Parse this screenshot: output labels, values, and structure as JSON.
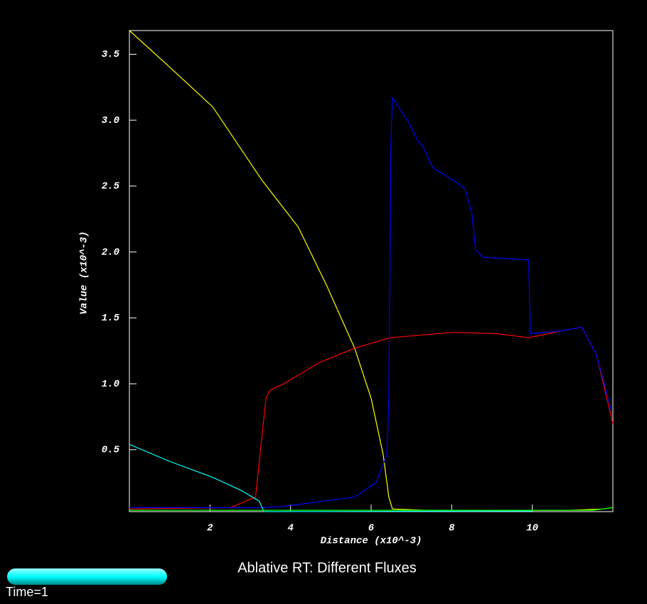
{
  "chart_data": {
    "type": "line",
    "title": "Ablative RT: Different Fluxes",
    "status": "Time=1",
    "x_label": "Distance (x10^-3)",
    "y_label": "Value (x10^-3)",
    "xlim": [
      0,
      12
    ],
    "ylim": [
      0.03,
      3.68
    ],
    "xticks": [
      2,
      4,
      6,
      8,
      10
    ],
    "yticks": [
      0.5,
      {
        "value": 1,
        "label": "1.0"
      },
      1.5,
      {
        "value": 2,
        "label": "2.0"
      },
      2.5,
      {
        "value": 3,
        "label": "3.0"
      },
      3.5
    ],
    "series": [
      {
        "name": "yellow",
        "color": "#ffff00",
        "x": [
          0,
          1.01,
          2.07,
          3.3,
          4.19,
          4.89,
          5.59,
          6.0,
          6.3,
          6.44,
          6.53,
          7.36,
          9.12,
          10.9,
          11.76,
          11.97
        ],
        "values": [
          3.68,
          3.4,
          3.1,
          2.54,
          2.19,
          1.75,
          1.27,
          0.89,
          0.46,
          0.14,
          0.05,
          0.04,
          0.04,
          0.04,
          0.05,
          0.06
        ]
      },
      {
        "name": "red",
        "color": "#ff0000",
        "x": [
          0,
          2.5,
          3.13,
          3.39,
          3.48,
          3.83,
          4.71,
          5.59,
          6.48,
          8.06,
          9.12,
          9.91,
          10.7,
          11.23,
          11.59,
          12.0
        ],
        "values": [
          0.05,
          0.06,
          0.14,
          0.89,
          0.95,
          1.0,
          1.16,
          1.27,
          1.35,
          1.39,
          1.38,
          1.35,
          1.4,
          1.43,
          1.22,
          0.7
        ]
      },
      {
        "name": "blue",
        "color": "#0000ff",
        "x": [
          0,
          3.3,
          3.83,
          5.59,
          6.12,
          6.39,
          6.44,
          6.49,
          6.53,
          6.92,
          7.18,
          7.27,
          7.53,
          8.06,
          8.33,
          8.5,
          8.59,
          8.77,
          9.91,
          9.95,
          10.7,
          11.23,
          11.59,
          11.97
        ],
        "values": [
          0.06,
          0.06,
          0.07,
          0.14,
          0.25,
          0.46,
          0.89,
          2.83,
          3.17,
          2.99,
          2.83,
          2.81,
          2.64,
          2.54,
          2.48,
          2.29,
          2.02,
          1.96,
          1.94,
          1.38,
          1.4,
          1.43,
          1.22,
          0.79
        ]
      },
      {
        "name": "cyan",
        "color": "#00ffff",
        "x": [
          0,
          1.01,
          2.07,
          2.78,
          3.22,
          3.34,
          10.0
        ],
        "values": [
          0.54,
          0.41,
          0.29,
          0.19,
          0.11,
          0.03,
          0.035
        ]
      },
      {
        "name": "green",
        "color": "#00ff00",
        "x": [
          0,
          6.6,
          10.0,
          11.5,
          12.0
        ],
        "values": [
          0.04,
          0.04,
          0.04,
          0.04,
          0.06
        ]
      }
    ]
  }
}
